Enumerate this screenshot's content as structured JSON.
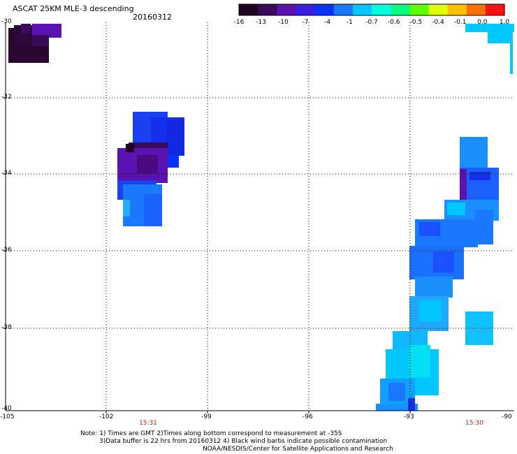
{
  "header": {
    "title": "ASCAT 25KM MLE-3 descending",
    "date": "20160312"
  },
  "colorbar": {
    "labels": [
      "-16",
      "-13",
      "-10",
      "-7",
      "-4",
      "-1",
      "-0.7",
      "-0.6",
      "-0.5",
      "-0.4",
      "-0.1",
      "0.0",
      "1.0"
    ],
    "colors": [
      "#200020",
      "#3a0a5a",
      "#5a12b0",
      "#3a1ee0",
      "#0a32ff",
      "#1a78ff",
      "#00c8ff",
      "#00ffe0",
      "#00ff80",
      "#60ff00",
      "#e0ff00",
      "#ffc000",
      "#ff7000",
      "#ff1010"
    ]
  },
  "axes": {
    "lat_labels": [
      "-30",
      "-32",
      "-34",
      "-36",
      "-38",
      "-40"
    ],
    "lon_labels": [
      "-105",
      "-102",
      "-99",
      "-96",
      "-93",
      "-90"
    ],
    "lat_range": [
      -40,
      -30
    ],
    "lon_range": [
      -105,
      -90
    ]
  },
  "times": [
    "15:31",
    "15:30"
  ],
  "notes": {
    "line1": "Note: 1) Times are GMT 2)Times along bottom correspond to measurement at -35S",
    "line2": "3)Data buffer is 22 hrs from 20160312 4) Black wind barbs indicate possible contamination",
    "line3": "NOAA/NESDIS/Center for Satellite Applications and Research"
  }
}
